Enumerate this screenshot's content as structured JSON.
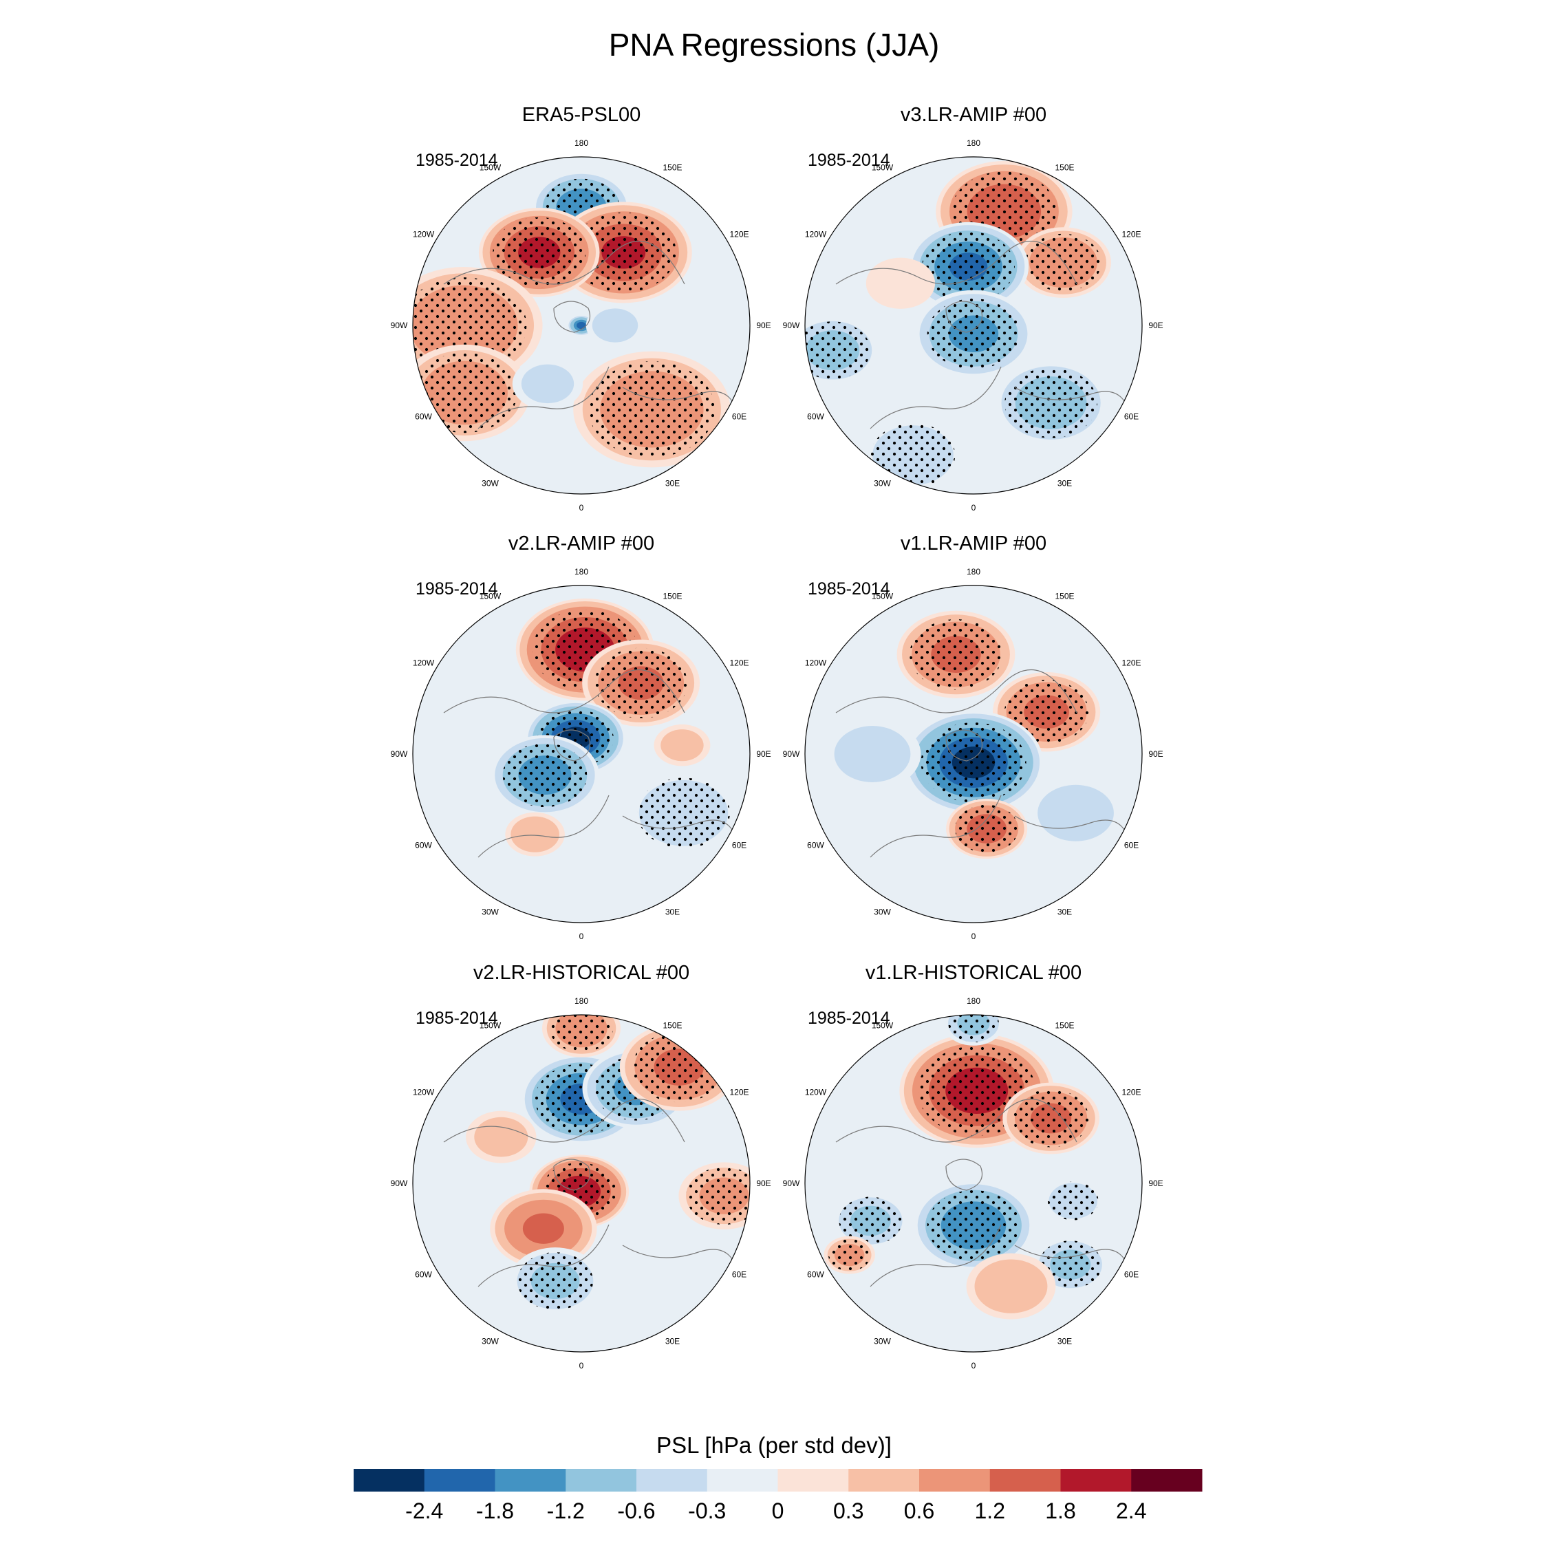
{
  "title": "PNA Regressions (JJA)",
  "colors": {
    "levels": [
      "#053061",
      "#2166ac",
      "#4393c3",
      "#92c5de",
      "#c6dbef",
      "#e8eff5",
      "#fbe3d8",
      "#f7c0a6",
      "#ec9578",
      "#d6604d",
      "#b2182b",
      "#67001f"
    ]
  },
  "longitude_labels": [
    "180",
    "150E",
    "120E",
    "90E",
    "60E",
    "30E",
    "0",
    "30W",
    "60W",
    "90W",
    "120W",
    "150W"
  ],
  "chart_data": [
    {
      "type": "heatmap",
      "projection": "north-polar-stereographic",
      "title": "ERA5-PSL00",
      "period": "1985-2014",
      "variable": "PSL",
      "units": "hPa (per std dev)",
      "anomalies": [
        {
          "lon": 180,
          "dist": 0.7,
          "value": -1.6,
          "spread": 0.18,
          "stippled": true
        },
        {
          "lon": 150,
          "dist": 0.5,
          "value": 1.8,
          "spread": 0.25,
          "stippled": true
        },
        {
          "lon": 210,
          "dist": 0.5,
          "value": 1.9,
          "spread": 0.22,
          "stippled": true
        },
        {
          "lon": 0,
          "dist": 0.0,
          "value": -1.8,
          "spread": 0.05,
          "stippled": false
        },
        {
          "lon": 270,
          "dist": 0.7,
          "value": 1.0,
          "spread": 0.3,
          "stippled": true
        },
        {
          "lon": 300,
          "dist": 0.8,
          "value": 0.9,
          "spread": 0.25,
          "stippled": true
        },
        {
          "lon": 40,
          "dist": 0.65,
          "value": 0.9,
          "spread": 0.3,
          "stippled": true
        },
        {
          "lon": 90,
          "dist": 0.2,
          "value": -0.4,
          "spread": 0.12,
          "stippled": false
        },
        {
          "lon": 330,
          "dist": 0.4,
          "value": -0.3,
          "spread": 0.15,
          "stippled": false
        }
      ]
    },
    {
      "type": "heatmap",
      "projection": "north-polar-stereographic",
      "title": "v3.LR-AMIP  #00",
      "period": "1985-2014",
      "variable": "PSL",
      "units": "hPa (per std dev)",
      "anomalies": [
        {
          "lon": 165,
          "dist": 0.7,
          "value": 1.7,
          "spread": 0.25,
          "stippled": true
        },
        {
          "lon": 125,
          "dist": 0.65,
          "value": 1.1,
          "spread": 0.18,
          "stippled": true
        },
        {
          "lon": 185,
          "dist": 0.35,
          "value": -1.8,
          "spread": 0.22,
          "stippled": true
        },
        {
          "lon": 0,
          "dist": 0.05,
          "value": -1.3,
          "spread": 0.22,
          "stippled": true
        },
        {
          "lon": 280,
          "dist": 0.85,
          "value": -0.7,
          "spread": 0.18,
          "stippled": true
        },
        {
          "lon": 45,
          "dist": 0.65,
          "value": -0.8,
          "spread": 0.22,
          "stippled": true
        },
        {
          "lon": 335,
          "dist": 0.85,
          "value": -0.5,
          "spread": 0.2,
          "stippled": true
        },
        {
          "lon": 240,
          "dist": 0.5,
          "value": 0.25,
          "spread": 0.15,
          "stippled": false
        }
      ]
    },
    {
      "type": "heatmap",
      "projection": "north-polar-stereographic",
      "title": "v2.LR-AMIP  #00",
      "period": "1985-2014",
      "variable": "PSL",
      "units": "hPa (per std dev)",
      "anomalies": [
        {
          "lon": 178,
          "dist": 0.62,
          "value": 2.2,
          "spread": 0.25,
          "stippled": true
        },
        {
          "lon": 140,
          "dist": 0.55,
          "value": 1.2,
          "spread": 0.22,
          "stippled": true
        },
        {
          "lon": 200,
          "dist": 0.1,
          "value": -2.5,
          "spread": 0.18,
          "stippled": true
        },
        {
          "lon": 300,
          "dist": 0.25,
          "value": -1.5,
          "spread": 0.2,
          "stippled": true
        },
        {
          "lon": 60,
          "dist": 0.7,
          "value": -0.5,
          "spread": 0.22,
          "stippled": true
        },
        {
          "lon": 330,
          "dist": 0.55,
          "value": 0.5,
          "spread": 0.12,
          "stippled": false
        },
        {
          "lon": 95,
          "dist": 0.6,
          "value": 0.3,
          "spread": 0.12,
          "stippled": false
        }
      ]
    },
    {
      "type": "heatmap",
      "projection": "north-polar-stereographic",
      "title": "v1.LR-AMIP  #00",
      "period": "1985-2014",
      "variable": "PSL",
      "units": "hPa (per std dev)",
      "anomalies": [
        {
          "lon": 190,
          "dist": 0.6,
          "value": 1.3,
          "spread": 0.22,
          "stippled": true
        },
        {
          "lon": 120,
          "dist": 0.5,
          "value": 1.3,
          "spread": 0.2,
          "stippled": true
        },
        {
          "lon": 0,
          "dist": 0.05,
          "value": -2.5,
          "spread": 0.25,
          "stippled": true
        },
        {
          "lon": 10,
          "dist": 0.45,
          "value": 1.5,
          "spread": 0.15,
          "stippled": true
        },
        {
          "lon": 60,
          "dist": 0.7,
          "value": -0.4,
          "spread": 0.2,
          "stippled": false
        },
        {
          "lon": 270,
          "dist": 0.6,
          "value": -0.4,
          "spread": 0.2,
          "stippled": false
        }
      ]
    },
    {
      "type": "heatmap",
      "projection": "north-polar-stereographic",
      "title": "v2.LR-HISTORICAL  #00",
      "period": "1985-2014",
      "variable": "PSL",
      "units": "hPa (per std dev)",
      "anomalies": [
        {
          "lon": 180,
          "dist": 0.5,
          "value": -1.9,
          "spread": 0.22,
          "stippled": true
        },
        {
          "lon": 150,
          "dist": 0.65,
          "value": -1.3,
          "spread": 0.2,
          "stippled": true
        },
        {
          "lon": 140,
          "dist": 0.9,
          "value": 1.3,
          "spread": 0.22,
          "stippled": true
        },
        {
          "lon": 180,
          "dist": 0.92,
          "value": 0.9,
          "spread": 0.15,
          "stippled": true
        },
        {
          "lon": 345,
          "dist": 0.05,
          "value": 2.2,
          "spread": 0.18,
          "stippled": true
        },
        {
          "lon": 320,
          "dist": 0.35,
          "value": 1.2,
          "spread": 0.2,
          "stippled": false
        },
        {
          "lon": 345,
          "dist": 0.6,
          "value": -0.6,
          "spread": 0.18,
          "stippled": true
        },
        {
          "lon": 85,
          "dist": 0.85,
          "value": 0.6,
          "spread": 0.18,
          "stippled": true
        },
        {
          "lon": 240,
          "dist": 0.55,
          "value": 0.3,
          "spread": 0.15,
          "stippled": false
        }
      ]
    },
    {
      "type": "heatmap",
      "projection": "north-polar-stereographic",
      "title": "v1.LR-HISTORICAL  #00",
      "period": "1985-2014",
      "variable": "PSL",
      "units": "hPa (per std dev)",
      "anomalies": [
        {
          "lon": 178,
          "dist": 0.55,
          "value": 2.1,
          "spread": 0.28,
          "stippled": true
        },
        {
          "lon": 130,
          "dist": 0.6,
          "value": 1.3,
          "spread": 0.18,
          "stippled": true
        },
        {
          "lon": 180,
          "dist": 0.95,
          "value": -0.6,
          "spread": 0.12,
          "stippled": true
        },
        {
          "lon": 0,
          "dist": 0.25,
          "value": -1.7,
          "spread": 0.22,
          "stippled": true
        },
        {
          "lon": 290,
          "dist": 0.65,
          "value": -0.6,
          "spread": 0.15,
          "stippled": true
        },
        {
          "lon": 300,
          "dist": 0.85,
          "value": 0.7,
          "spread": 0.1,
          "stippled": true
        },
        {
          "lon": 50,
          "dist": 0.75,
          "value": -0.6,
          "spread": 0.15,
          "stippled": true
        },
        {
          "lon": 80,
          "dist": 0.6,
          "value": -0.5,
          "spread": 0.12,
          "stippled": true
        },
        {
          "lon": 20,
          "dist": 0.65,
          "value": 0.5,
          "spread": 0.18,
          "stippled": false
        }
      ]
    }
  ],
  "colorbar": {
    "title": "PSL [hPa (per std dev)]",
    "ticks": [
      "-2.4",
      "-1.8",
      "-1.2",
      "-0.6",
      "-0.3",
      "0",
      "0.3",
      "0.6",
      "1.2",
      "1.8",
      "2.4"
    ],
    "level_bounds": [
      -2.4,
      -1.8,
      -1.2,
      -0.6,
      -0.3,
      0,
      0.3,
      0.6,
      1.2,
      1.8,
      2.4
    ]
  }
}
